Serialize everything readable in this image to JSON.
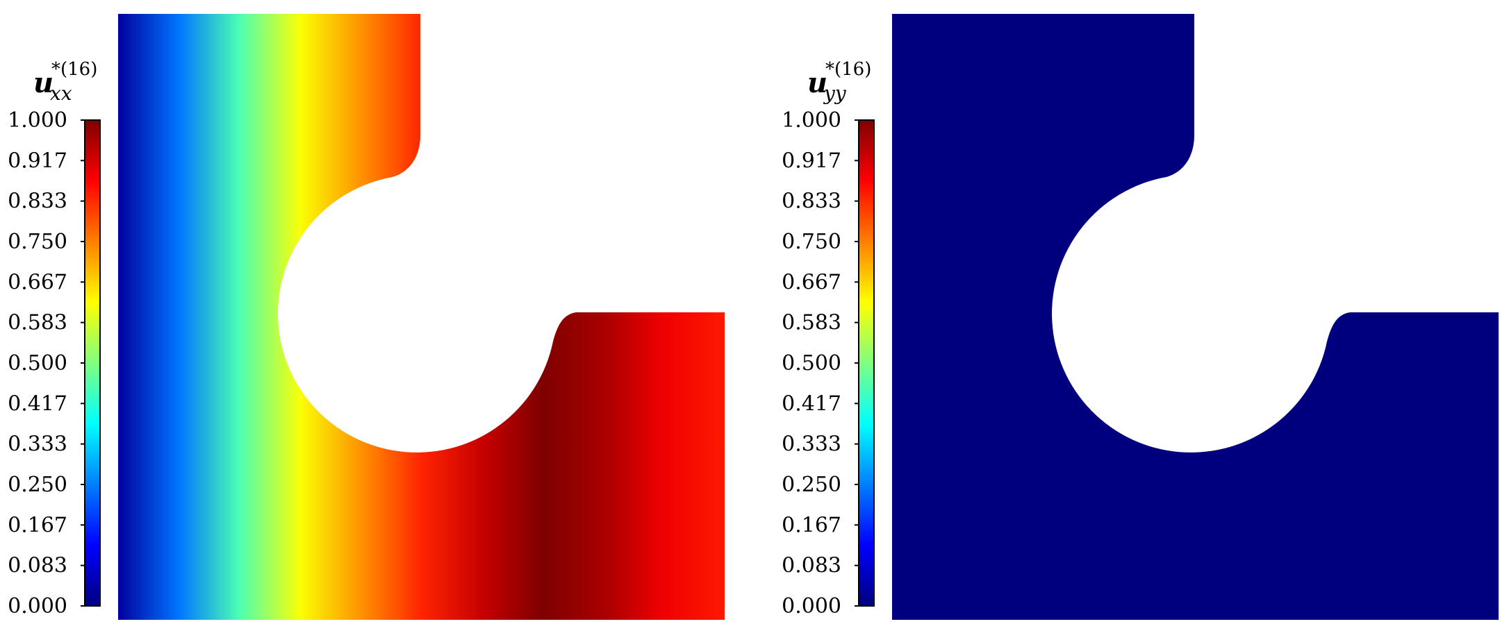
{
  "panels": [
    {
      "id": "left",
      "title": {
        "main": "u",
        "subscript": "xx",
        "superscript": "*(16)"
      },
      "colorbar": {
        "min": 0.0,
        "max": 1.0,
        "ticks": [
          "1.000",
          "0.917",
          "0.833",
          "0.750",
          "0.667",
          "0.583",
          "0.500",
          "0.417",
          "0.333",
          "0.250",
          "0.167",
          "0.083",
          "0.000"
        ]
      },
      "field": "gradient-x",
      "field_profile": [
        0.03,
        0.24,
        0.45,
        0.62,
        0.73,
        0.84,
        0.93,
        1.0,
        0.96,
        0.89,
        0.85
      ]
    },
    {
      "id": "right",
      "title": {
        "main": "u",
        "subscript": "yy",
        "superscript": "*(16)"
      },
      "colorbar": {
        "min": 0.0,
        "max": 1.0,
        "ticks": [
          "1.000",
          "0.917",
          "0.833",
          "0.750",
          "0.667",
          "0.583",
          "0.500",
          "0.417",
          "0.333",
          "0.250",
          "0.167",
          "0.083",
          "0.000"
        ]
      },
      "field": "uniform",
      "field_value": 0.0
    }
  ],
  "colormap": {
    "name": "jet",
    "stops": [
      "#00007f",
      "#0000ff",
      "#007fff",
      "#00ffff",
      "#7fff7f",
      "#ffff00",
      "#ff7f00",
      "#ff0000",
      "#7f0000"
    ]
  }
}
